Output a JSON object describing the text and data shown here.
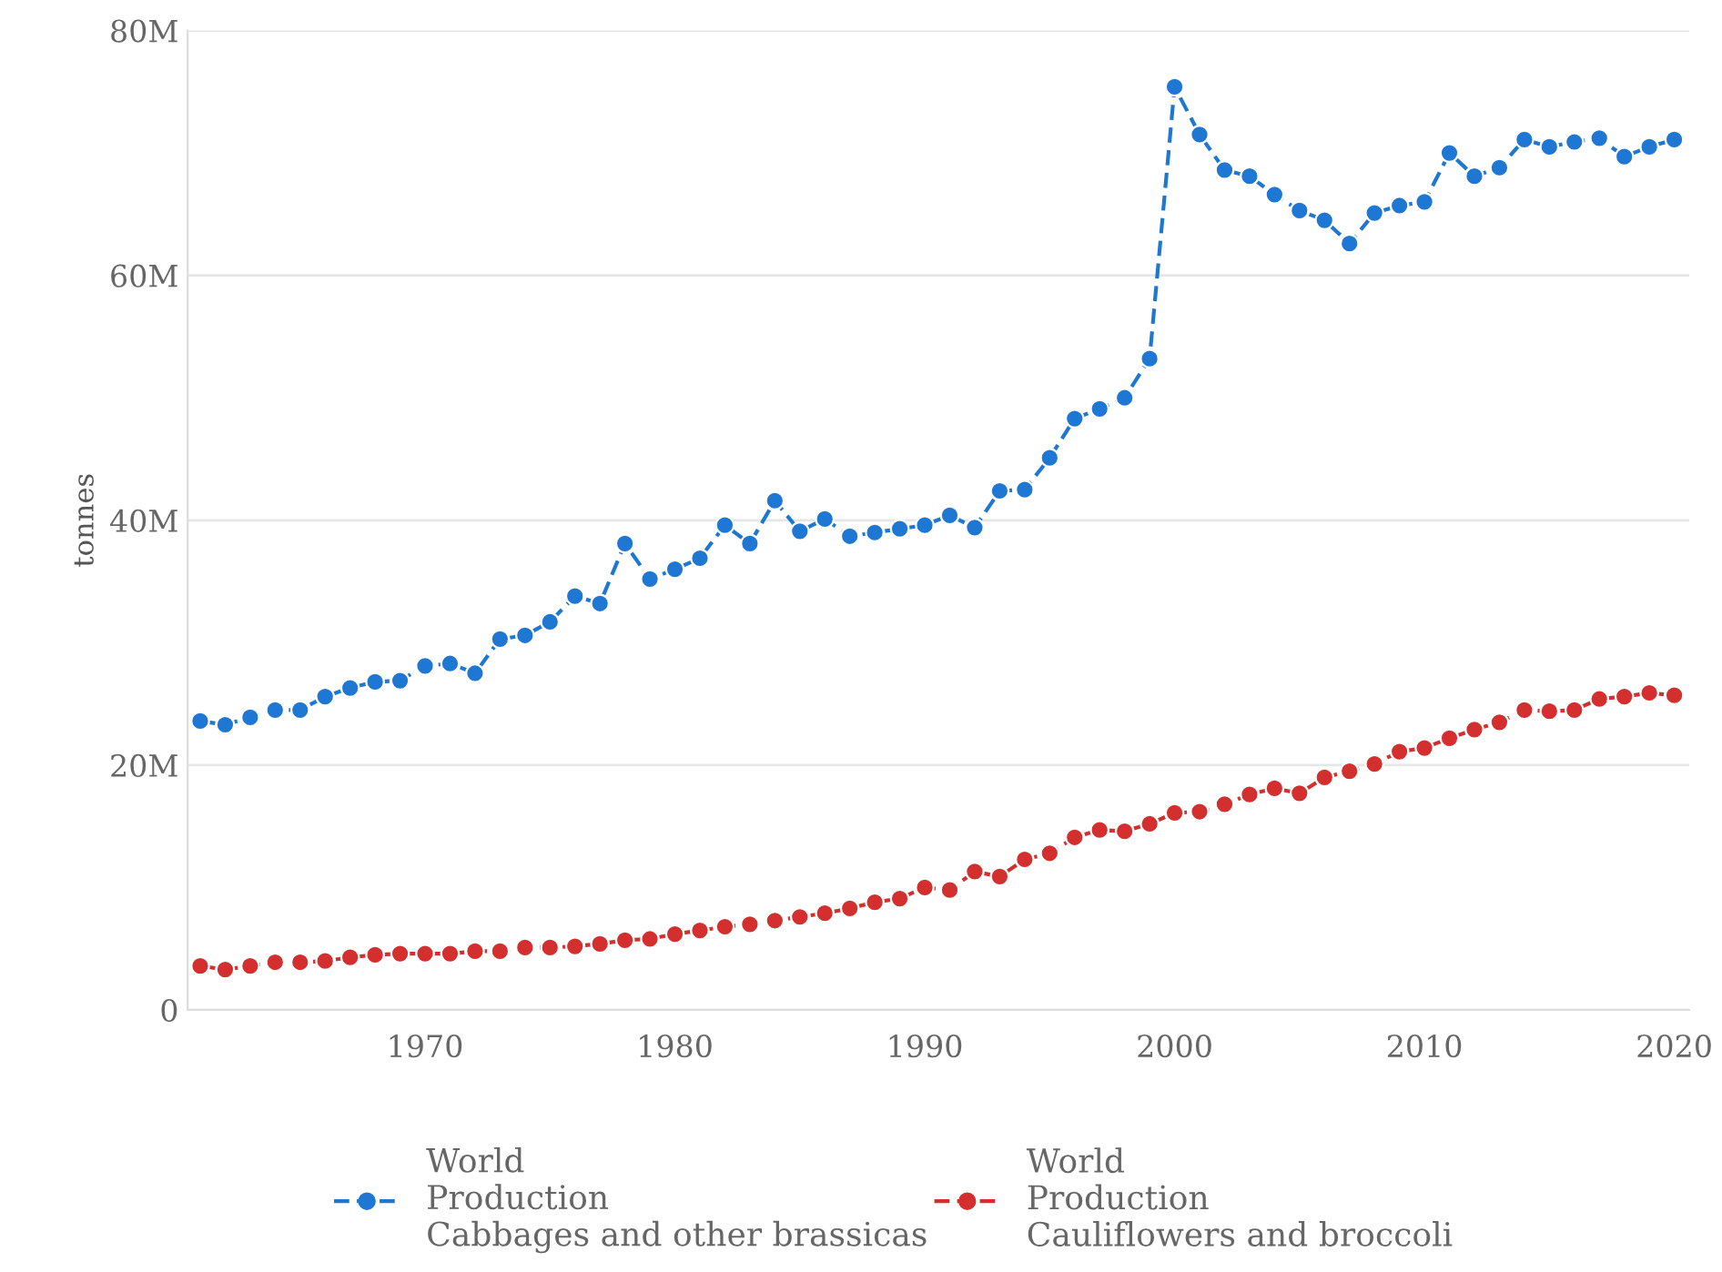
{
  "chart_data": {
    "type": "line",
    "ylabel": "tonnes",
    "x": [
      1961,
      1962,
      1963,
      1964,
      1965,
      1966,
      1967,
      1968,
      1969,
      1970,
      1971,
      1972,
      1973,
      1974,
      1975,
      1976,
      1977,
      1978,
      1979,
      1980,
      1981,
      1982,
      1983,
      1984,
      1985,
      1986,
      1987,
      1988,
      1989,
      1990,
      1991,
      1992,
      1993,
      1994,
      1995,
      1996,
      1997,
      1998,
      1999,
      2000,
      2001,
      2002,
      2003,
      2004,
      2005,
      2006,
      2007,
      2008,
      2009,
      2010,
      2011,
      2012,
      2013,
      2014,
      2015,
      2016,
      2017,
      2018,
      2019,
      2020
    ],
    "series": [
      {
        "name": "World\nProduction\nCabbages and other brassicas",
        "color": "#1f77d4",
        "values": [
          23600000,
          23300000,
          23900000,
          24500000,
          24500000,
          25600000,
          26300000,
          26800000,
          26900000,
          28100000,
          28300000,
          27500000,
          30300000,
          30600000,
          31700000,
          33800000,
          33200000,
          38100000,
          35200000,
          36000000,
          36900000,
          39600000,
          38100000,
          41600000,
          39100000,
          40100000,
          38700000,
          39000000,
          39300000,
          39600000,
          40400000,
          39400000,
          42400000,
          42500000,
          45100000,
          48300000,
          49100000,
          50000000,
          53200000,
          75400000,
          71500000,
          68600000,
          68100000,
          66600000,
          65300000,
          64500000,
          62600000,
          65100000,
          65700000,
          66000000,
          70000000,
          68100000,
          68800000,
          71100000,
          70500000,
          70900000,
          71200000,
          69700000,
          70500000,
          71100000
        ]
      },
      {
        "name": "World\nProduction\nCauliflowers and broccoli",
        "color": "#d32f2f",
        "values": [
          3600000,
          3300000,
          3600000,
          3900000,
          3900000,
          4000000,
          4300000,
          4500000,
          4600000,
          4600000,
          4600000,
          4800000,
          4800000,
          5100000,
          5100000,
          5200000,
          5400000,
          5700000,
          5800000,
          6200000,
          6500000,
          6800000,
          7000000,
          7300000,
          7600000,
          7900000,
          8300000,
          8800000,
          9100000,
          10000000,
          9800000,
          11300000,
          10900000,
          12300000,
          12800000,
          14100000,
          14700000,
          14600000,
          15200000,
          16100000,
          16200000,
          16800000,
          17600000,
          18100000,
          17700000,
          19000000,
          19500000,
          20100000,
          21100000,
          21400000,
          22200000,
          22900000,
          23500000,
          24500000,
          24400000,
          24500000,
          25400000,
          25600000,
          25900000,
          25700000
        ]
      }
    ],
    "xlim": [
      1960.5,
      2020.6
    ],
    "xticks": [
      1970,
      1980,
      1990,
      2000,
      2010,
      2020
    ],
    "ylim": [
      0,
      80000000
    ],
    "yticks": [
      {
        "value": 0,
        "label": "0"
      },
      {
        "value": 20000000,
        "label": "20M"
      },
      {
        "value": 40000000,
        "label": "40M"
      },
      {
        "value": 60000000,
        "label": "60M"
      },
      {
        "value": 80000000,
        "label": "80M"
      }
    ],
    "grid": "y",
    "legend": "bottom",
    "marker": "circle",
    "line_style": "dashed"
  }
}
